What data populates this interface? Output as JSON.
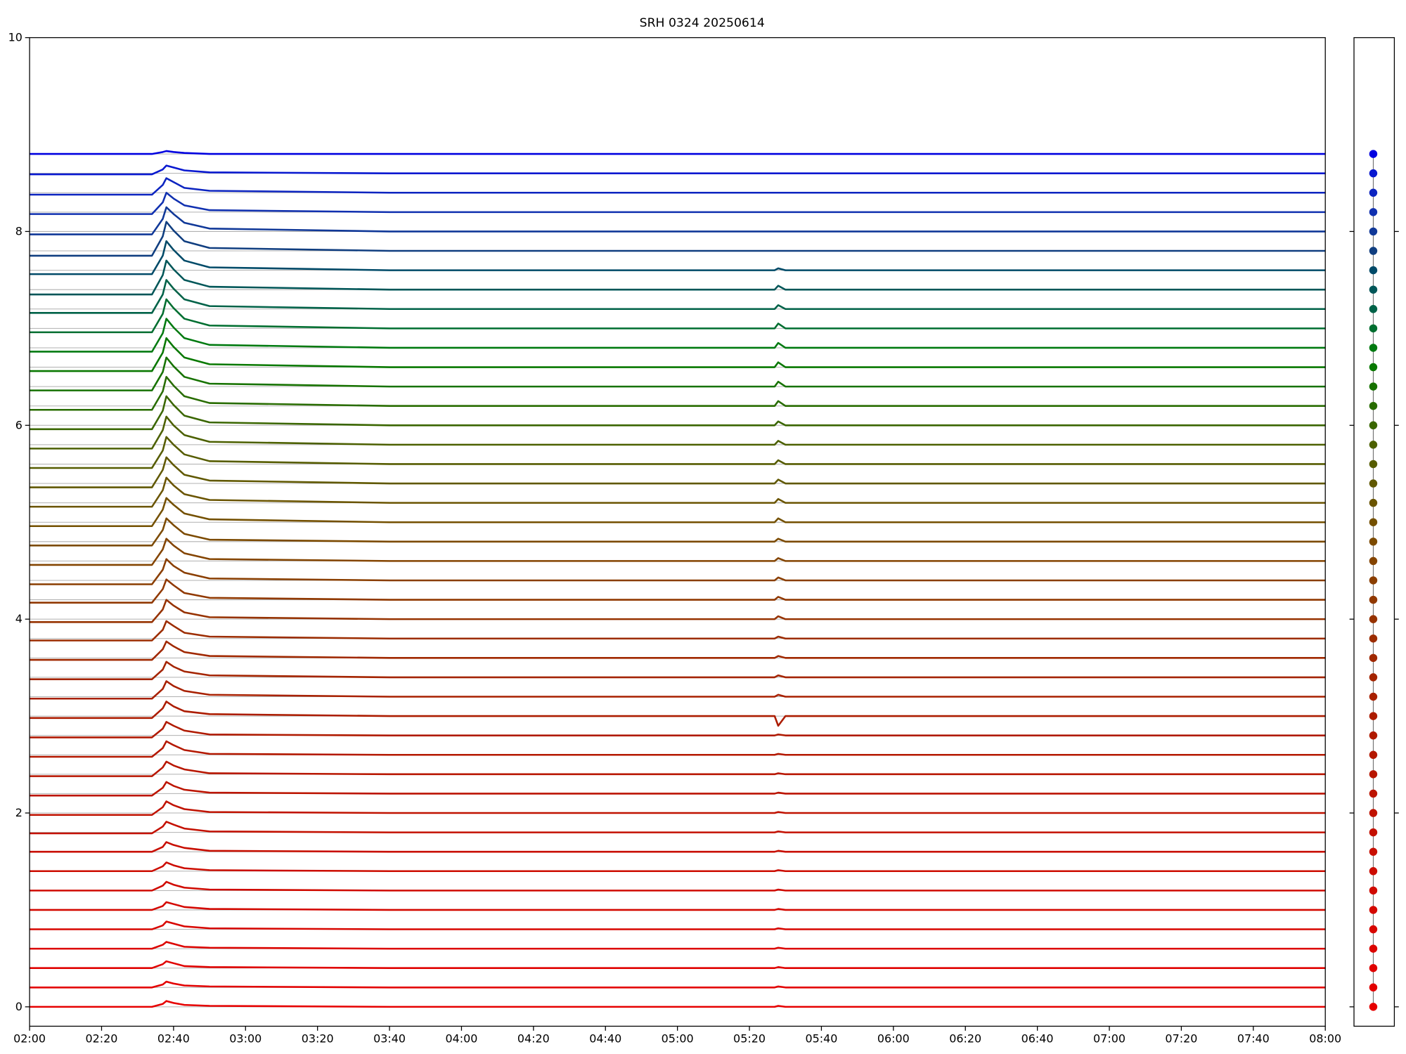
{
  "chart_data": {
    "type": "line",
    "title": "SRH 0324 20250614",
    "x": [
      "02:00",
      "02:34",
      "02:37",
      "02:38",
      "02:40",
      "02:43",
      "02:50",
      "03:40",
      "05:27",
      "05:28",
      "05:30",
      "08:00"
    ],
    "xlim": [
      "02:00",
      "08:00"
    ],
    "xticks": [
      "02:00",
      "02:20",
      "02:40",
      "03:00",
      "03:20",
      "03:40",
      "04:00",
      "04:20",
      "04:40",
      "05:00",
      "05:20",
      "05:40",
      "06:00",
      "06:20",
      "06:40",
      "07:00",
      "07:20",
      "07:40",
      "08:00"
    ],
    "ylim": [
      -0.2,
      10
    ],
    "yticks": [
      0,
      2,
      4,
      6,
      8,
      10
    ],
    "grid": true,
    "offsets": [
      0,
      0.2,
      0.4,
      0.6,
      0.8,
      1,
      1.2,
      1.4,
      1.6,
      1.8,
      2,
      2.2,
      2.4,
      2.6,
      2.8,
      3,
      3.2,
      3.4,
      3.6,
      3.8,
      4,
      4.2,
      4.4,
      4.6,
      4.8,
      5,
      5.2,
      5.4,
      5.6,
      5.8,
      6,
      6.2,
      6.4,
      6.6,
      6.8,
      7,
      7.2,
      7.4,
      7.6,
      7.8,
      8,
      8.2,
      8.4,
      8.6,
      8.8
    ],
    "series": [
      {
        "color": "#e60000",
        "values": [
          0,
          0,
          0.03,
          0.06,
          0.04,
          0.02,
          0.01,
          0,
          0,
          0.01,
          0,
          0
        ]
      },
      {
        "color": "#e30000",
        "values": [
          0.2,
          0.2,
          0.23,
          0.26,
          0.24,
          0.22,
          0.21,
          0.2,
          0.2,
          0.21,
          0.2,
          0.2
        ]
      },
      {
        "color": "#e00200",
        "values": [
          0.4,
          0.4,
          0.44,
          0.47,
          0.45,
          0.42,
          0.41,
          0.4,
          0.4,
          0.41,
          0.4,
          0.4
        ]
      },
      {
        "color": "#dc0400",
        "values": [
          0.6,
          0.6,
          0.64,
          0.67,
          0.65,
          0.62,
          0.61,
          0.6,
          0.6,
          0.61,
          0.6,
          0.6
        ]
      },
      {
        "color": "#d80600",
        "values": [
          0.8,
          0.8,
          0.84,
          0.88,
          0.86,
          0.83,
          0.81,
          0.8,
          0.8,
          0.81,
          0.8,
          0.8
        ]
      },
      {
        "color": "#d40800",
        "values": [
          1,
          1,
          1.04,
          1.08,
          1.06,
          1.03,
          1.01,
          1,
          1,
          1.01,
          1,
          1
        ]
      },
      {
        "color": "#d00a00",
        "values": [
          1.2,
          1.2,
          1.25,
          1.29,
          1.26,
          1.23,
          1.21,
          1.2,
          1.2,
          1.21,
          1.2,
          1.2
        ]
      },
      {
        "color": "#cc0c00",
        "values": [
          1.4,
          1.4,
          1.45,
          1.49,
          1.46,
          1.43,
          1.41,
          1.4,
          1.4,
          1.41,
          1.4,
          1.4
        ]
      },
      {
        "color": "#c80e00",
        "values": [
          1.6,
          1.6,
          1.65,
          1.7,
          1.67,
          1.64,
          1.61,
          1.6,
          1.6,
          1.61,
          1.6,
          1.6
        ]
      },
      {
        "color": "#c41000",
        "values": [
          1.79,
          1.79,
          1.86,
          1.91,
          1.88,
          1.84,
          1.81,
          1.8,
          1.8,
          1.81,
          1.8,
          1.8
        ]
      },
      {
        "color": "#c01200",
        "values": [
          1.98,
          1.98,
          2.06,
          2.12,
          2.08,
          2.04,
          2.01,
          2,
          2,
          2.01,
          2,
          2
        ]
      },
      {
        "color": "#bc1400",
        "values": [
          2.18,
          2.18,
          2.26,
          2.32,
          2.28,
          2.24,
          2.21,
          2.2,
          2.2,
          2.21,
          2.2,
          2.2
        ]
      },
      {
        "color": "#b81600",
        "values": [
          2.38,
          2.38,
          2.47,
          2.53,
          2.49,
          2.45,
          2.41,
          2.4,
          2.4,
          2.41,
          2.4,
          2.4
        ]
      },
      {
        "color": "#b41800",
        "values": [
          2.58,
          2.58,
          2.67,
          2.74,
          2.7,
          2.65,
          2.61,
          2.6,
          2.6,
          2.61,
          2.6,
          2.6
        ]
      },
      {
        "color": "#b01a00",
        "values": [
          2.78,
          2.78,
          2.87,
          2.94,
          2.9,
          2.85,
          2.81,
          2.8,
          2.8,
          2.81,
          2.8,
          2.8
        ]
      },
      {
        "color": "#ac1c00",
        "values": [
          2.98,
          2.98,
          3.08,
          3.15,
          3.1,
          3.05,
          3.02,
          3,
          3,
          2.9,
          3,
          3
        ]
      },
      {
        "color": "#a82000",
        "values": [
          3.18,
          3.18,
          3.28,
          3.36,
          3.31,
          3.26,
          3.22,
          3.2,
          3.2,
          3.22,
          3.2,
          3.2
        ]
      },
      {
        "color": "#a42400",
        "values": [
          3.38,
          3.38,
          3.48,
          3.56,
          3.51,
          3.46,
          3.42,
          3.4,
          3.4,
          3.42,
          3.4,
          3.4
        ]
      },
      {
        "color": "#a02800",
        "values": [
          3.58,
          3.58,
          3.69,
          3.77,
          3.72,
          3.66,
          3.62,
          3.6,
          3.6,
          3.62,
          3.6,
          3.6
        ]
      },
      {
        "color": "#9c2c00",
        "values": [
          3.78,
          3.78,
          3.89,
          3.98,
          3.93,
          3.86,
          3.82,
          3.8,
          3.8,
          3.82,
          3.8,
          3.8
        ]
      },
      {
        "color": "#963200",
        "values": [
          3.97,
          3.97,
          4.1,
          4.2,
          4.14,
          4.07,
          4.02,
          4,
          4,
          4.03,
          4,
          4
        ]
      },
      {
        "color": "#903800",
        "values": [
          4.17,
          4.17,
          4.31,
          4.41,
          4.35,
          4.27,
          4.22,
          4.2,
          4.2,
          4.23,
          4.2,
          4.2
        ]
      },
      {
        "color": "#8a3e00",
        "values": [
          4.36,
          4.36,
          4.51,
          4.62,
          4.55,
          4.48,
          4.42,
          4.4,
          4.4,
          4.43,
          4.4,
          4.4
        ]
      },
      {
        "color": "#844400",
        "values": [
          4.56,
          4.56,
          4.72,
          4.83,
          4.76,
          4.68,
          4.62,
          4.6,
          4.6,
          4.63,
          4.6,
          4.6
        ]
      },
      {
        "color": "#7c4a00",
        "values": [
          4.76,
          4.76,
          4.92,
          5.04,
          4.97,
          4.88,
          4.82,
          4.8,
          4.8,
          4.83,
          4.8,
          4.8
        ]
      },
      {
        "color": "#745000",
        "values": [
          4.96,
          4.96,
          5.13,
          5.25,
          5.18,
          5.09,
          5.03,
          5,
          5,
          5.04,
          5,
          5
        ]
      },
      {
        "color": "#6a5400",
        "values": [
          5.16,
          5.16,
          5.33,
          5.46,
          5.38,
          5.29,
          5.23,
          5.2,
          5.2,
          5.24,
          5.2,
          5.2
        ]
      },
      {
        "color": "#605800",
        "values": [
          5.36,
          5.36,
          5.54,
          5.67,
          5.59,
          5.49,
          5.43,
          5.4,
          5.4,
          5.44,
          5.4,
          5.4
        ]
      },
      {
        "color": "#565c00",
        "values": [
          5.56,
          5.56,
          5.74,
          5.88,
          5.8,
          5.7,
          5.63,
          5.6,
          5.6,
          5.64,
          5.6,
          5.6
        ]
      },
      {
        "color": "#4c6000",
        "values": [
          5.76,
          5.76,
          5.95,
          6.09,
          6,
          5.9,
          5.83,
          5.8,
          5.8,
          5.84,
          5.8,
          5.8
        ]
      },
      {
        "color": "#3a6600",
        "values": [
          5.96,
          5.96,
          6.15,
          6.3,
          6.21,
          6.1,
          6.03,
          6,
          6,
          6.04,
          6,
          6
        ]
      },
      {
        "color": "#286c00",
        "values": [
          6.16,
          6.16,
          6.35,
          6.5,
          6.41,
          6.3,
          6.23,
          6.2,
          6.2,
          6.25,
          6.2,
          6.2
        ]
      },
      {
        "color": "#167200",
        "values": [
          6.36,
          6.36,
          6.55,
          6.7,
          6.61,
          6.5,
          6.43,
          6.4,
          6.4,
          6.45,
          6.4,
          6.4
        ]
      },
      {
        "color": "#087800",
        "values": [
          6.56,
          6.56,
          6.75,
          6.9,
          6.81,
          6.7,
          6.63,
          6.6,
          6.6,
          6.65,
          6.6,
          6.6
        ]
      },
      {
        "color": "#007a10",
        "values": [
          6.76,
          6.76,
          6.95,
          7.1,
          7.01,
          6.9,
          6.83,
          6.8,
          6.8,
          6.85,
          6.8,
          6.8
        ]
      },
      {
        "color": "#006e30",
        "values": [
          6.96,
          6.96,
          7.15,
          7.3,
          7.21,
          7.1,
          7.03,
          7,
          7,
          7.05,
          7,
          7
        ]
      },
      {
        "color": "#006248",
        "values": [
          7.16,
          7.16,
          7.35,
          7.5,
          7.41,
          7.3,
          7.23,
          7.2,
          7.2,
          7.24,
          7.2,
          7.2
        ]
      },
      {
        "color": "#005658",
        "values": [
          7.35,
          7.35,
          7.55,
          7.7,
          7.61,
          7.5,
          7.43,
          7.4,
          7.4,
          7.44,
          7.4,
          7.4
        ]
      },
      {
        "color": "#004a68",
        "values": [
          7.56,
          7.56,
          7.75,
          7.9,
          7.81,
          7.7,
          7.63,
          7.6,
          7.6,
          7.62,
          7.6,
          7.6
        ]
      },
      {
        "color": "#103e80",
        "values": [
          7.75,
          7.75,
          7.95,
          8.1,
          8.01,
          7.9,
          7.83,
          7.8,
          7.8,
          7.8,
          7.8,
          7.8
        ]
      },
      {
        "color": "#103898",
        "values": [
          7.97,
          7.97,
          8.13,
          8.25,
          8.18,
          8.09,
          8.03,
          8,
          8,
          8,
          8,
          8
        ]
      },
      {
        "color": "#1030b0",
        "values": [
          8.18,
          8.18,
          8.3,
          8.4,
          8.34,
          8.27,
          8.22,
          8.2,
          8.2,
          8.2,
          8.2,
          8.2
        ]
      },
      {
        "color": "#0c24c0",
        "values": [
          8.38,
          8.38,
          8.48,
          8.55,
          8.51,
          8.45,
          8.42,
          8.4,
          8.4,
          8.4,
          8.4,
          8.4
        ]
      },
      {
        "color": "#0818d0",
        "values": [
          8.59,
          8.59,
          8.64,
          8.68,
          8.66,
          8.63,
          8.61,
          8.6,
          8.6,
          8.6,
          8.6,
          8.6
        ]
      },
      {
        "color": "#0000e0",
        "values": [
          8.8,
          8.8,
          8.82,
          8.83,
          8.82,
          8.81,
          8.8,
          8.8,
          8.8,
          8.8,
          8.8,
          8.8
        ]
      }
    ]
  }
}
